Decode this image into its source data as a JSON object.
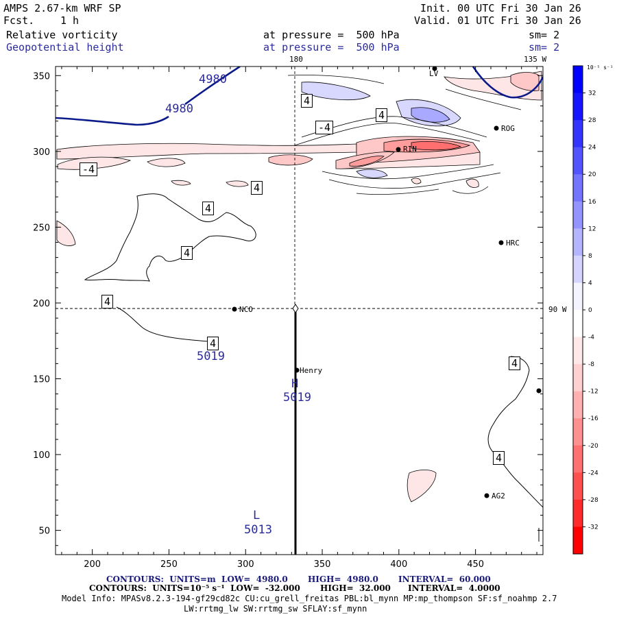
{
  "header": {
    "model": "AMPS 2.67-km WRF SP",
    "fcst_label": "Fcst.",
    "fcst_value": "1 h",
    "init": "Init. 00 UTC Fri 30 Jan 26",
    "valid": "Valid. 01 UTC Fri 30 Jan 26",
    "field1": "Relative vorticity",
    "field1_level": "at pressure =  500 hPa",
    "field1_sm": "sm= 2",
    "field2": "Geopotential height",
    "field2_level": "at pressure =  500 hPa",
    "field2_sm": "sm= 2"
  },
  "map_labels": {
    "lon_180": "180",
    "lon_135": "135 W",
    "lon_90": "90 W",
    "stations": [
      {
        "name": "NCO"
      },
      {
        "name": "Henry"
      },
      {
        "name": "HRC"
      },
      {
        "name": "AG2"
      },
      {
        "name": "RIN"
      },
      {
        "name": "ROG"
      },
      {
        "name": "LV"
      }
    ],
    "high_label": "H",
    "high_value": "5019",
    "high_value2": "5019",
    "low_label": "L",
    "low_value": "5013",
    "height_contours": [
      "4980",
      "4980"
    ],
    "vort_contour_labels": [
      "4",
      "4",
      "-4",
      "-4",
      "4",
      "4",
      "4",
      "4",
      "4",
      "4",
      "4"
    ]
  },
  "footer": {
    "contours1": "CONTOURS:  UNITS=m  LOW=  4980.0       HIGH=  4980.0       INTERVAL=  60.000",
    "contours2": "CONTOURS:  UNITS=10⁻⁵ s⁻¹  LOW=  -32.000       HIGH=  32.000      INTERVAL=  4.0000",
    "model_info": "Model Info: MPASv8.2.3-194-gf29cd82c CU:cu_grell_freitas PBL:bl_mynn MP:mp_thompson SF:sf_noahmp 2.7",
    "model_info2": "LW:rrtmg_lw SW:rrtmg_sw SFLAY:sf_mynn"
  },
  "colorbar": {
    "units": "10⁻⁵ s⁻¹",
    "ticks": [
      "32",
      "28",
      "24",
      "20",
      "16",
      "12",
      "8",
      "4",
      "0",
      "-4",
      "-8",
      "-12",
      "-16",
      "-20",
      "-24",
      "-28",
      "-32"
    ],
    "colors_top_to_bottom": [
      "#0000ff",
      "#1414ff",
      "#3434ff",
      "#5454ff",
      "#7474ff",
      "#9494ff",
      "#b4b4ff",
      "#d4d4ff",
      "#f4f4ff",
      "#ffffff",
      "#ffe8e8",
      "#ffd0d0",
      "#ffb0b0",
      "#ff9090",
      "#ff7070",
      "#ff5050",
      "#ff2a2a",
      "#ff0000"
    ]
  },
  "chart_data": {
    "type": "heatmap",
    "title": "Relative vorticity / Geopotential height at 500 hPa",
    "x_ticks": [
      "200",
      "250",
      "300",
      "350",
      "400",
      "450"
    ],
    "y_ticks": [
      "350",
      "300",
      "250",
      "200",
      "150",
      "100",
      "50"
    ],
    "xlim": [
      176,
      494
    ],
    "ylim": [
      34,
      356
    ],
    "vorticity_range": [
      -32,
      32
    ],
    "vorticity_interval": 4,
    "height_contour_m": 4980,
    "high_center_m": 5019,
    "low_center_m": 5013
  }
}
